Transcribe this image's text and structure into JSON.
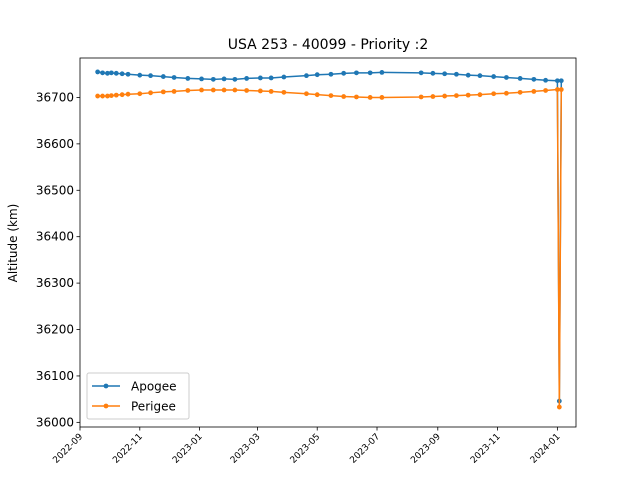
{
  "chart_data": {
    "type": "line",
    "title": "USA 253 - 40099 - Priority :2",
    "xlabel": "",
    "ylabel": "Altitude (km)",
    "ylim": [
      35990,
      36785
    ],
    "xlim": [
      "2022-09-01",
      "2024-01-20"
    ],
    "yticks": [
      36000,
      36100,
      36200,
      36300,
      36400,
      36500,
      36600,
      36700
    ],
    "xticks": [
      "2022-09",
      "2022-11",
      "2023-01",
      "2023-03",
      "2023-05",
      "2023-07",
      "2023-09",
      "2023-11",
      "2024-01"
    ],
    "grid": false,
    "legend_position": "lower-left",
    "series": [
      {
        "name": "Apogee",
        "color": "#1f77b4",
        "points": [
          [
            "2022-09-19",
            36755
          ],
          [
            "2022-09-24",
            36753
          ],
          [
            "2022-09-29",
            36752
          ],
          [
            "2022-10-03",
            36753
          ],
          [
            "2022-10-08",
            36752
          ],
          [
            "2022-10-14",
            36751
          ],
          [
            "2022-10-20",
            36750
          ],
          [
            "2022-11-01",
            36748
          ],
          [
            "2022-11-12",
            36747
          ],
          [
            "2022-11-25",
            36745
          ],
          [
            "2022-12-06",
            36743
          ],
          [
            "2022-12-20",
            36741
          ],
          [
            "2023-01-03",
            36740
          ],
          [
            "2023-01-15",
            36739
          ],
          [
            "2023-01-26",
            36740
          ],
          [
            "2023-02-06",
            36739
          ],
          [
            "2023-02-18",
            36741
          ],
          [
            "2023-03-04",
            36742
          ],
          [
            "2023-03-15",
            36742
          ],
          [
            "2023-03-28",
            36744
          ],
          [
            "2023-04-20",
            36747
          ],
          [
            "2023-05-01",
            36749
          ],
          [
            "2023-05-15",
            36750
          ],
          [
            "2023-05-28",
            36752
          ],
          [
            "2023-06-10",
            36753
          ],
          [
            "2023-06-24",
            36753
          ],
          [
            "2023-07-06",
            36754
          ],
          [
            "2023-08-15",
            36753
          ],
          [
            "2023-08-27",
            36752
          ],
          [
            "2023-09-08",
            36751
          ],
          [
            "2023-09-20",
            36750
          ],
          [
            "2023-10-02",
            36748
          ],
          [
            "2023-10-14",
            36747
          ],
          [
            "2023-10-28",
            36745
          ],
          [
            "2023-11-10",
            36743
          ],
          [
            "2023-11-24",
            36741
          ],
          [
            "2023-12-08",
            36739
          ],
          [
            "2023-12-20",
            36737
          ],
          [
            "2024-01-01",
            36736
          ],
          [
            "2024-01-03",
            36046
          ],
          [
            "2024-01-05",
            36736
          ]
        ]
      },
      {
        "name": "Perigee",
        "color": "#ff7f0e",
        "points": [
          [
            "2022-09-19",
            36703
          ],
          [
            "2022-09-24",
            36703
          ],
          [
            "2022-09-29",
            36703
          ],
          [
            "2022-10-03",
            36704
          ],
          [
            "2022-10-08",
            36705
          ],
          [
            "2022-10-14",
            36706
          ],
          [
            "2022-10-20",
            36707
          ],
          [
            "2022-11-01",
            36708
          ],
          [
            "2022-11-12",
            36710
          ],
          [
            "2022-11-25",
            36712
          ],
          [
            "2022-12-06",
            36713
          ],
          [
            "2022-12-20",
            36715
          ],
          [
            "2023-01-03",
            36716
          ],
          [
            "2023-01-15",
            36716
          ],
          [
            "2023-01-26",
            36716
          ],
          [
            "2023-02-06",
            36716
          ],
          [
            "2023-02-18",
            36715
          ],
          [
            "2023-03-04",
            36714
          ],
          [
            "2023-03-15",
            36713
          ],
          [
            "2023-03-28",
            36711
          ],
          [
            "2023-04-20",
            36708
          ],
          [
            "2023-05-01",
            36706
          ],
          [
            "2023-05-15",
            36704
          ],
          [
            "2023-05-28",
            36702
          ],
          [
            "2023-06-10",
            36701
          ],
          [
            "2023-06-24",
            36700
          ],
          [
            "2023-07-06",
            36700
          ],
          [
            "2023-08-15",
            36701
          ],
          [
            "2023-08-27",
            36702
          ],
          [
            "2023-09-08",
            36703
          ],
          [
            "2023-09-20",
            36704
          ],
          [
            "2023-10-02",
            36705
          ],
          [
            "2023-10-14",
            36706
          ],
          [
            "2023-10-28",
            36708
          ],
          [
            "2023-11-10",
            36709
          ],
          [
            "2023-11-24",
            36711
          ],
          [
            "2023-12-08",
            36713
          ],
          [
            "2023-12-20",
            36715
          ],
          [
            "2024-01-01",
            36717
          ],
          [
            "2024-01-03",
            36033
          ],
          [
            "2024-01-05",
            36717
          ]
        ]
      }
    ]
  }
}
